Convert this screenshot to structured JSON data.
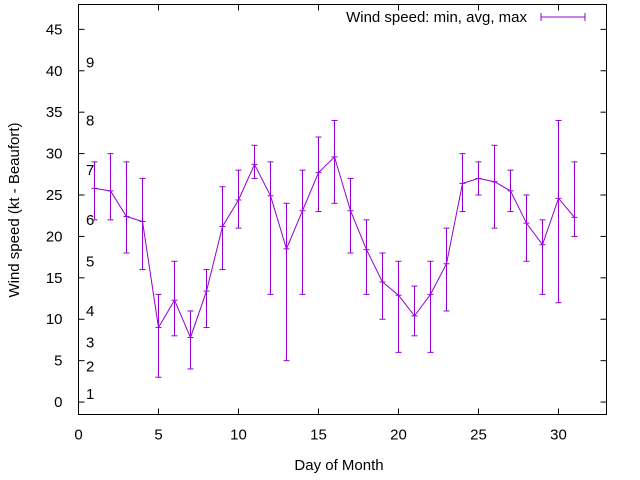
{
  "chart_data": {
    "type": "line",
    "xlabel": "Day of Month",
    "ylabel": "Wind speed (kt - Beaufort)",
    "xlim": [
      0,
      33
    ],
    "ylim": [
      -1.5,
      48
    ],
    "xticks": [
      0,
      5,
      10,
      15,
      20,
      25,
      30
    ],
    "yticks": [
      0,
      5,
      10,
      15,
      20,
      25,
      30,
      35,
      40,
      45
    ],
    "grid": false,
    "legend_position": "top-right",
    "colors": {
      "series": "#9400d3",
      "axes": "#000000"
    },
    "series": [
      {
        "name": "Wind speed: min, avg, max",
        "x": [
          1,
          2,
          3,
          4,
          5,
          6,
          7,
          8,
          9,
          10,
          11,
          12,
          13,
          14,
          15,
          16,
          17,
          18,
          19,
          20,
          21,
          22,
          23,
          24,
          25,
          26,
          27,
          28,
          29,
          30,
          31
        ],
        "avg": [
          25.8,
          25.5,
          22.4,
          21.8,
          9.0,
          12.3,
          7.8,
          13.4,
          21.2,
          24.4,
          28.7,
          24.9,
          18.5,
          23.1,
          27.7,
          29.6,
          23.1,
          18.4,
          14.5,
          12.9,
          10.4,
          13.0,
          16.7,
          26.4,
          27.0,
          26.6,
          25.5,
          21.6,
          19.0,
          24.6,
          22.3
        ],
        "min": [
          22,
          22,
          18,
          16,
          3,
          8,
          4,
          9,
          16,
          21,
          27,
          13,
          5,
          13,
          23,
          24,
          18,
          13,
          10,
          6,
          8,
          6,
          11,
          23,
          25,
          21,
          23,
          17,
          13,
          12,
          20
        ],
        "max": [
          29,
          30,
          29,
          27,
          13,
          17,
          11,
          16,
          26,
          28,
          31,
          29,
          24,
          28,
          32,
          34,
          27,
          22,
          18,
          17,
          14,
          17,
          21,
          30,
          29,
          31,
          28,
          25,
          22,
          34,
          29
        ]
      }
    ],
    "annotations": {
      "beaufort": [
        {
          "text": "1",
          "y": 1
        },
        {
          "text": "2",
          "y": 4.3
        },
        {
          "text": "3",
          "y": 7.2
        },
        {
          "text": "4",
          "y": 11
        },
        {
          "text": "5",
          "y": 17
        },
        {
          "text": "6",
          "y": 22
        },
        {
          "text": "7",
          "y": 28
        },
        {
          "text": "8",
          "y": 34
        },
        {
          "text": "9",
          "y": 41
        }
      ]
    }
  }
}
